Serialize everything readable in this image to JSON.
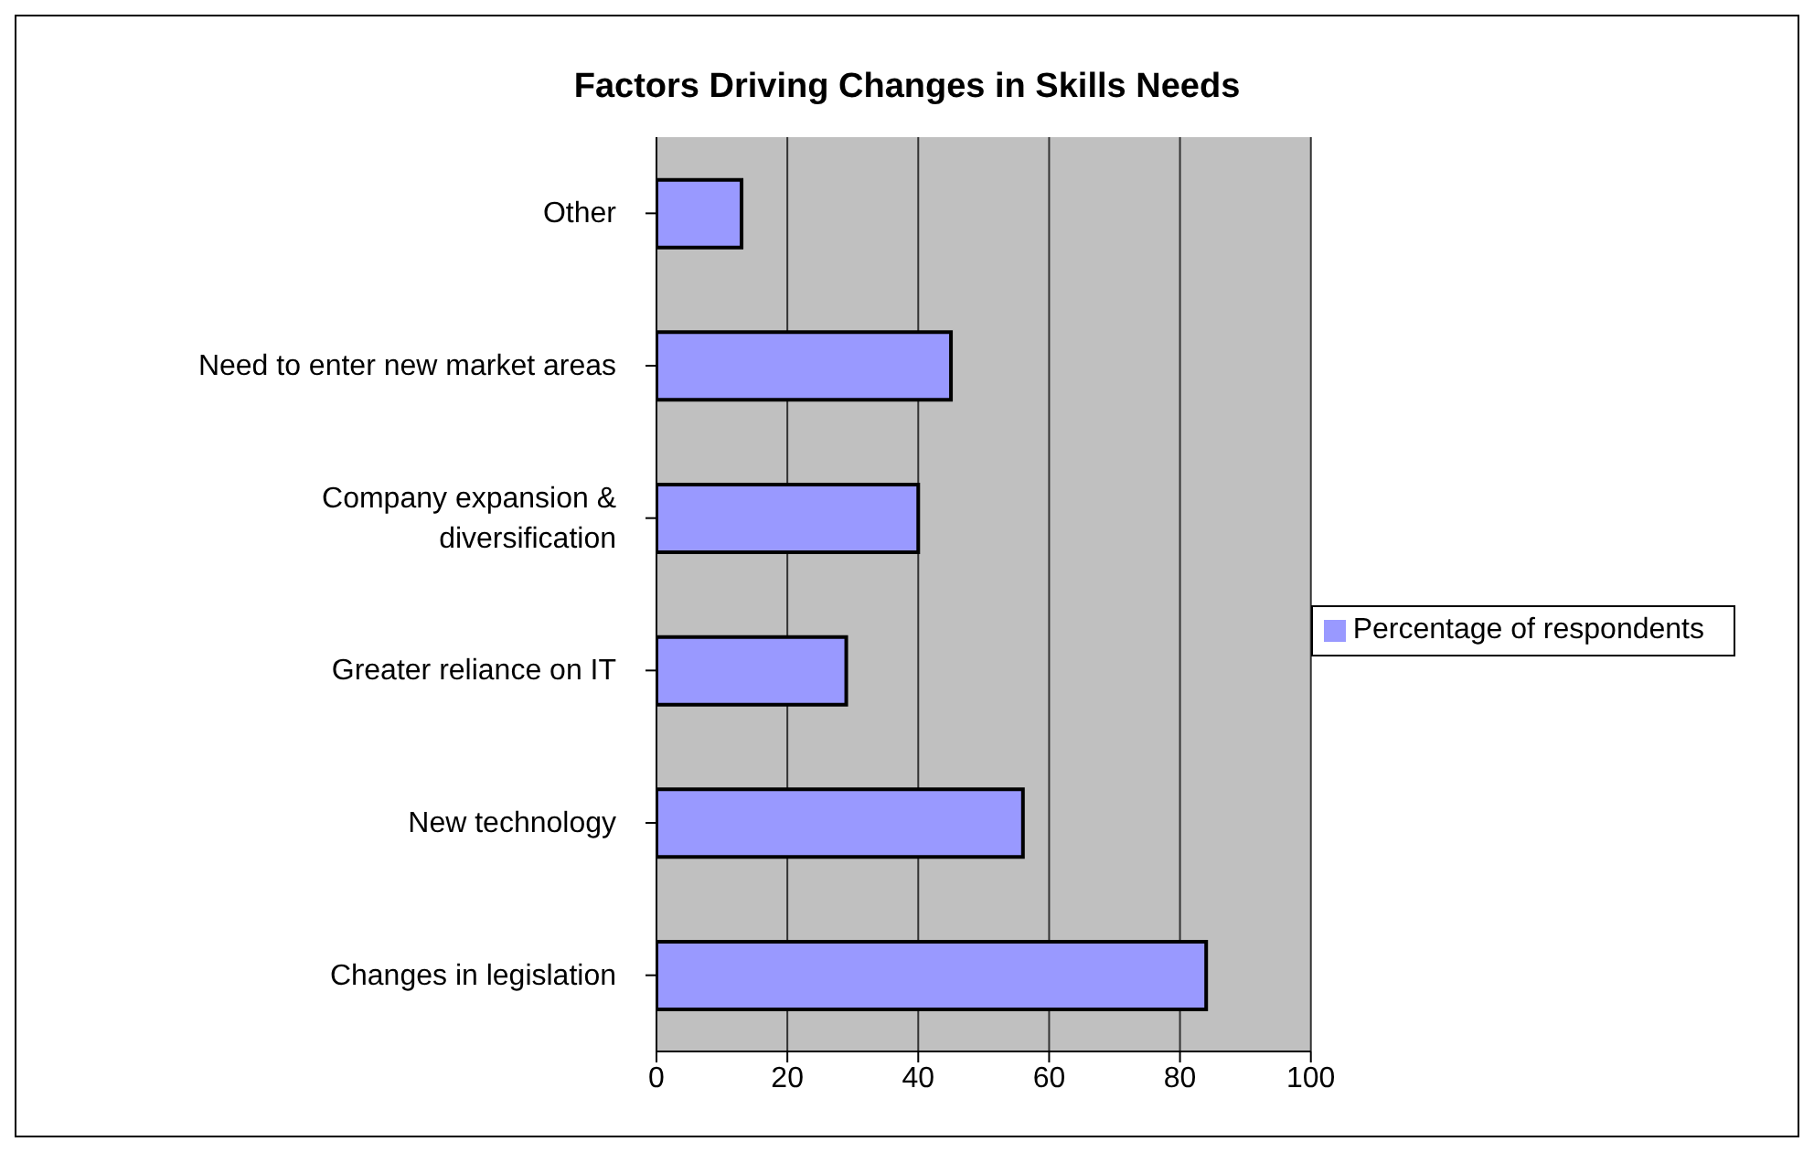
{
  "chart_data": {
    "type": "bar",
    "orientation": "horizontal",
    "title": "Factors Driving Changes in Skills Needs",
    "categories": [
      "Other",
      "Need to enter new market areas",
      "Company expansion & diversification",
      "Greater reliance on IT",
      "New technology",
      "Changes in legislation"
    ],
    "series": [
      {
        "name": "Percentage of respondents",
        "color": "#9999ff",
        "values": [
          13,
          45,
          40,
          29,
          56,
          84
        ]
      }
    ],
    "xlim": [
      0,
      100
    ],
    "xticks": [
      0,
      20,
      40,
      60,
      80,
      100
    ],
    "grid": "x",
    "legend": "right"
  }
}
